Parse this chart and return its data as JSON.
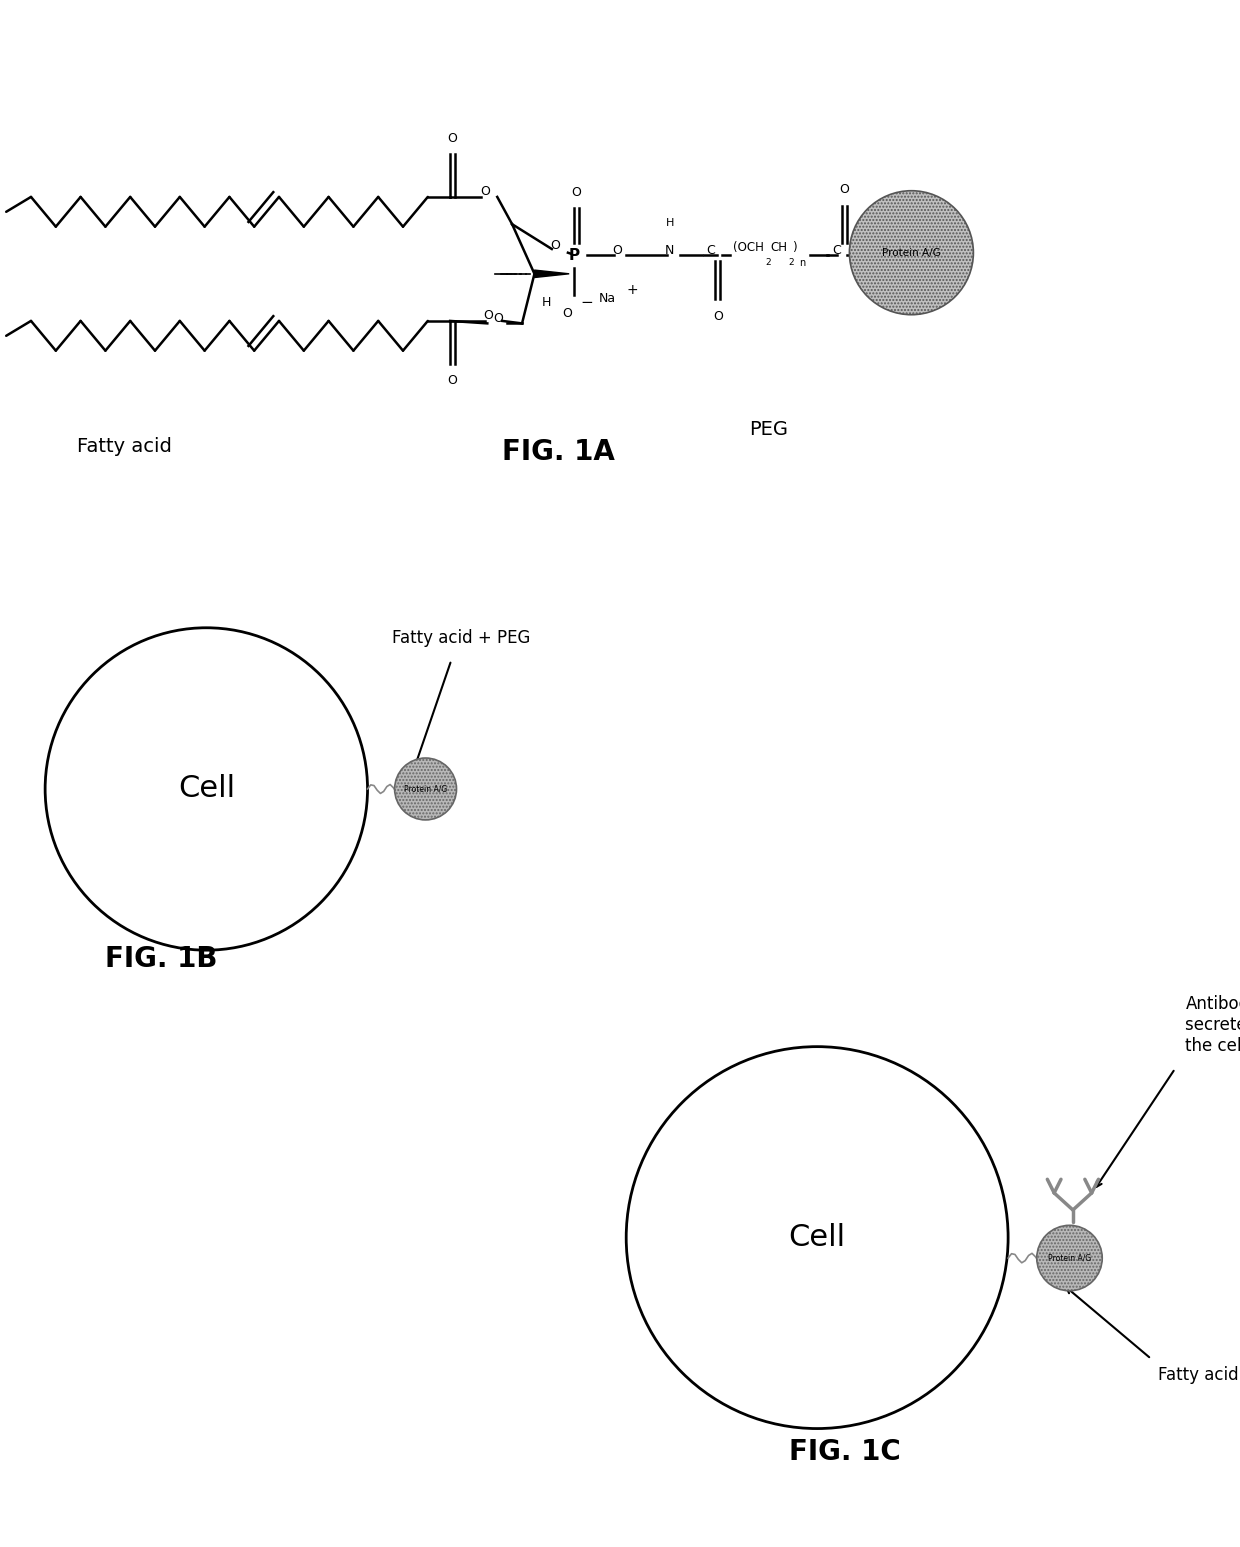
{
  "fig_width": 12.4,
  "fig_height": 15.47,
  "background_color": "#ffffff",
  "panel_1a": {
    "label": "FIG. 1A",
    "fatty_acid_label": "Fatty acid",
    "peg_label": "PEG",
    "protein_ag_label": "Protein A/G"
  },
  "panel_1b": {
    "label": "FIG. 1B",
    "cell_label": "Cell",
    "arrow_label": "Fatty acid + PEG",
    "protein_ag_label": "Protein A/G"
  },
  "panel_1c": {
    "label": "FIG. 1C",
    "cell_label": "Cell",
    "antibody_label": "Antibody\nsecreted from\nthe cell",
    "fatty_acid_peg_label": "Fatty acid + PEG",
    "protein_ag_label": "Protein A/G"
  },
  "cell_color": "#ffffff",
  "cell_edge_color": "#000000",
  "protein_color": "#aaaaaa",
  "text_color": "#000000",
  "label_fontsize": 18,
  "caption_fontsize": 20,
  "bold_captions": true
}
